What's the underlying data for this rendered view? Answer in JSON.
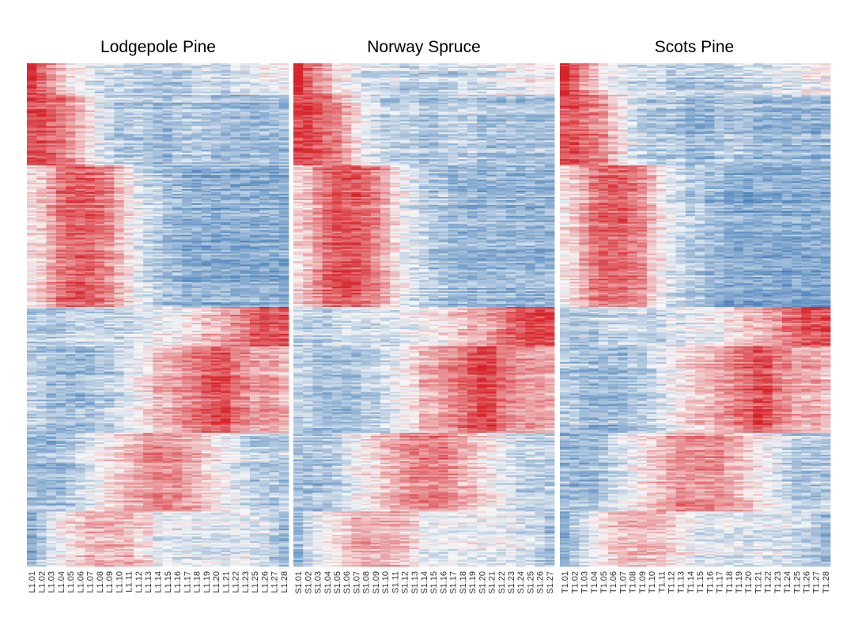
{
  "chart_data": {
    "type": "heatmap",
    "color_scale": {
      "low": "#2166ac",
      "mid": "#f7f7f7",
      "high": "#d6232a"
    },
    "grid": false,
    "legend": "none",
    "row_count": 320,
    "row_blocks": [
      {
        "rows": 20,
        "pattern": [
          1.0,
          0.7,
          0.5,
          0.3,
          0.1,
          0.0,
          -0.1,
          -0.2,
          -0.2,
          -0.2,
          -0.2,
          -0.3,
          -0.3,
          -0.3,
          -0.3,
          -0.3,
          -0.3,
          -0.3,
          -0.2,
          -0.2,
          -0.2,
          -0.2,
          -0.1,
          -0.1,
          -0.1,
          0.0,
          0.0,
          0.0
        ]
      },
      {
        "rows": 45,
        "pattern": [
          0.8,
          0.8,
          0.7,
          0.6,
          0.5,
          0.3,
          0.1,
          -0.1,
          -0.2,
          -0.3,
          -0.3,
          -0.3,
          -0.3,
          -0.4,
          -0.4,
          -0.4,
          -0.3,
          -0.3,
          -0.3,
          -0.3,
          -0.4,
          -0.4,
          -0.4,
          -0.4,
          -0.4,
          -0.4,
          -0.4,
          -0.4
        ]
      },
      {
        "rows": 90,
        "pattern": [
          0.1,
          0.2,
          0.4,
          0.6,
          0.7,
          0.7,
          0.7,
          0.6,
          0.5,
          0.3,
          0.1,
          -0.1,
          -0.2,
          -0.3,
          -0.3,
          -0.4,
          -0.4,
          -0.5,
          -0.5,
          -0.5,
          -0.5,
          -0.5,
          -0.5,
          -0.5,
          -0.5,
          -0.5,
          -0.5,
          -0.5
        ]
      },
      {
        "rows": 25,
        "pattern": [
          -0.3,
          -0.3,
          -0.3,
          -0.3,
          -0.2,
          -0.2,
          -0.2,
          -0.2,
          -0.2,
          -0.2,
          -0.2,
          -0.1,
          -0.1,
          0.0,
          0.0,
          0.0,
          0.0,
          0.1,
          0.2,
          0.3,
          0.3,
          0.4,
          0.5,
          0.6,
          0.7,
          0.8,
          0.8,
          0.8
        ]
      },
      {
        "rows": 55,
        "pattern": [
          -0.3,
          -0.3,
          -0.4,
          -0.4,
          -0.4,
          -0.4,
          -0.4,
          -0.3,
          -0.3,
          -0.2,
          -0.1,
          0.0,
          0.1,
          0.2,
          0.3,
          0.3,
          0.4,
          0.5,
          0.6,
          0.7,
          0.8,
          0.8,
          0.6,
          0.5,
          0.4,
          0.4,
          0.4,
          0.3
        ]
      },
      {
        "rows": 50,
        "pattern": [
          -0.4,
          -0.4,
          -0.4,
          -0.4,
          -0.3,
          -0.2,
          -0.1,
          0.0,
          0.1,
          0.2,
          0.3,
          0.4,
          0.5,
          0.5,
          0.5,
          0.5,
          0.5,
          0.4,
          0.3,
          0.2,
          0.1,
          0.0,
          -0.1,
          -0.2,
          -0.3,
          -0.3,
          -0.3,
          -0.3
        ]
      },
      {
        "rows": 35,
        "pattern": [
          -0.5,
          -0.3,
          -0.1,
          0.0,
          0.1,
          0.2,
          0.3,
          0.3,
          0.3,
          0.3,
          0.3,
          0.2,
          0.1,
          0.0,
          -0.1,
          -0.1,
          -0.1,
          -0.1,
          -0.1,
          -0.1,
          -0.1,
          -0.1,
          -0.1,
          -0.1,
          -0.2,
          -0.2,
          -0.3,
          -0.4
        ]
      }
    ],
    "panels": [
      {
        "title": "Lodgepole Pine",
        "columns": [
          "L1.01",
          "L1.02",
          "L1.03",
          "L1.04",
          "L1.05",
          "L1.06",
          "L1.07",
          "L1.08",
          "L1.09",
          "L1.10",
          "L1.11",
          "L1.12",
          "L1.13",
          "L1.14",
          "L1.15",
          "L1.16",
          "L1.17",
          "L1.18",
          "L1.19",
          "L1.20",
          "L1.21",
          "L1.22",
          "L1.23",
          "L1.25",
          "L1.26",
          "L1.27",
          "L1.28"
        ]
      },
      {
        "title": "Norway Spruce",
        "columns": [
          "S1.01",
          "S1.02",
          "S1.03",
          "S1.04",
          "S1.05",
          "S1.06",
          "S1.07",
          "S1.08",
          "S1.09",
          "S1.10",
          "S1.11",
          "S1.12",
          "S1.13",
          "S1.14",
          "S1.15",
          "S1.16",
          "S1.17",
          "S1.18",
          "S1.19",
          "S1.20",
          "S1.21",
          "S1.22",
          "S1.23",
          "S1.24",
          "S1.25",
          "S1.26",
          "S1.27"
        ]
      },
      {
        "title": "Scots Pine",
        "columns": [
          "T1.01",
          "T1.02",
          "T1.03",
          "T1.04",
          "T1.05",
          "T1.06",
          "T1.07",
          "T1.08",
          "T1.09",
          "T1.10",
          "T1.11",
          "T1.12",
          "T1.13",
          "T1.14",
          "T1.15",
          "T1.16",
          "T1.17",
          "T1.18",
          "T1.19",
          "T1.20",
          "T1.21",
          "T1.22",
          "T1.23",
          "T1.24",
          "T1.25",
          "T1.26",
          "T1.27",
          "T1.28"
        ]
      }
    ]
  }
}
